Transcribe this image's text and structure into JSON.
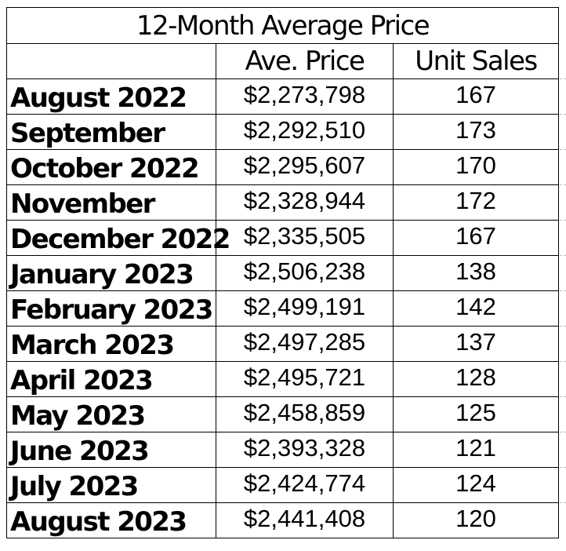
{
  "table": {
    "title": "12-Month Average Price",
    "headers": [
      "",
      "Ave. Price",
      "Unit Sales"
    ],
    "rows": [
      {
        "month": "August 2022",
        "price": "$2,273,798",
        "units": "167"
      },
      {
        "month": "September",
        "price": "$2,292,510",
        "units": "173"
      },
      {
        "month": "October 2022",
        "price": "$2,295,607",
        "units": "170"
      },
      {
        "month": "November",
        "price": "$2,328,944",
        "units": "172"
      },
      {
        "month": "December 2022",
        "price": "$2,335,505",
        "units": "167"
      },
      {
        "month": "January 2023",
        "price": "$2,506,238",
        "units": "138"
      },
      {
        "month": "February 2023",
        "price": "$2,499,191",
        "units": "142"
      },
      {
        "month": "March 2023",
        "price": "$2,497,285",
        "units": "137"
      },
      {
        "month": "April 2023",
        "price": "$2,495,721",
        "units": "128"
      },
      {
        "month": "May 2023",
        "price": "$2,458,859",
        "units": "125"
      },
      {
        "month": "June 2023",
        "price": "$2,393,328",
        "units": "121"
      },
      {
        "month": "July 2023",
        "price": "$2,424,774",
        "units": "124"
      },
      {
        "month": "August 2023",
        "price": "$2,441,408",
        "units": "120"
      }
    ]
  }
}
